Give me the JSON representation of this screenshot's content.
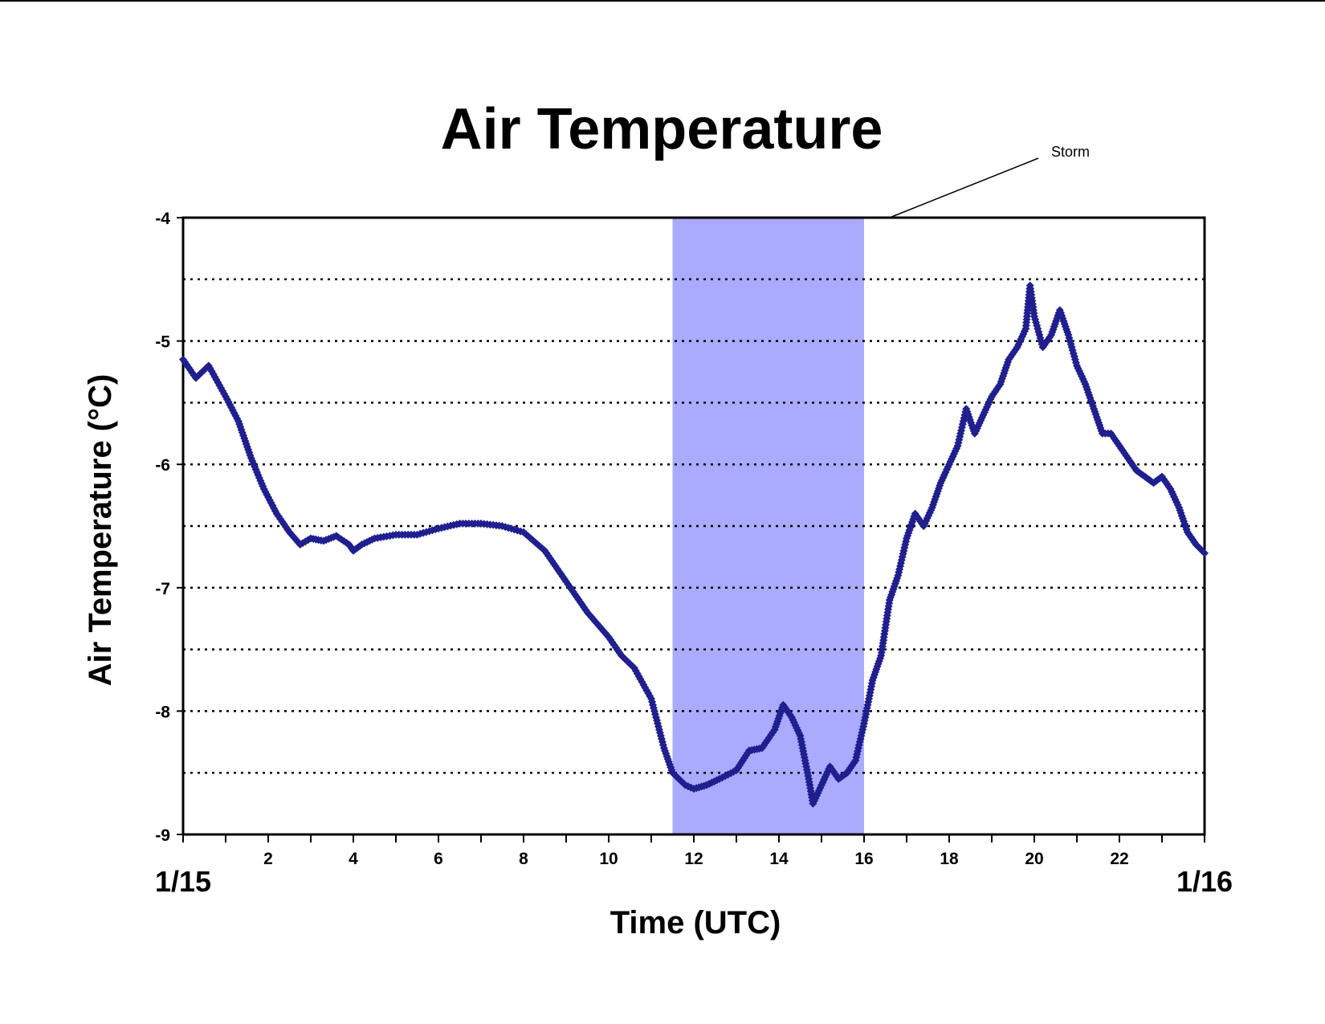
{
  "chart_data": {
    "type": "scatter",
    "title": "Air Temperature",
    "xlabel": "Time (UTC)",
    "ylabel": "Air Temperature (°C)",
    "xlim": [
      0,
      24
    ],
    "ylim": [
      -9,
      -4
    ],
    "x_ticks": [
      0,
      2,
      4,
      6,
      8,
      10,
      12,
      14,
      16,
      18,
      20,
      22,
      24
    ],
    "x_tick_labels": [
      "2",
      "4",
      "6",
      "8",
      "10",
      "12",
      "14",
      "16",
      "18",
      "20",
      "22"
    ],
    "y_ticks": [
      -9,
      -8,
      -7,
      -6,
      -5,
      -4
    ],
    "y_tick_labels": [
      "-9",
      "-8",
      "-7",
      "-6",
      "-5",
      "-4"
    ],
    "gridlines_y": [
      -8.5,
      -8,
      -7.5,
      -7,
      -6.5,
      -6,
      -5.5,
      -5,
      -4.5
    ],
    "grid": "horizontal dotted",
    "date_labels": {
      "start": "1/15",
      "end": "1/16"
    },
    "shaded_region": {
      "x_start": 11.5,
      "x_end": 16,
      "color": "#aaaaff"
    },
    "annotation": {
      "text": "Storm",
      "points_to_x": 16.6,
      "points_to_y": -4
    },
    "marker": {
      "shape": "diamond",
      "color": "#1f1f8f"
    },
    "series": [
      {
        "x": [
          0.0,
          0.3,
          0.6,
          1.0,
          1.3,
          1.6,
          1.9,
          2.2,
          2.5,
          2.75,
          3.0,
          3.3,
          3.6,
          3.9,
          4.0,
          4.2,
          4.5,
          5.0,
          5.5,
          6.0,
          6.5,
          7.0,
          7.5,
          8.0,
          8.5,
          9.0,
          9.5,
          10.0,
          10.3,
          10.6,
          11.0,
          11.3,
          11.5,
          11.8,
          12.0,
          12.3,
          12.6,
          13.0,
          13.3,
          13.6,
          13.9,
          14.1,
          14.3,
          14.5,
          14.7,
          14.8,
          15.0,
          15.2,
          15.4,
          15.6,
          15.8,
          16.0,
          16.2,
          16.4,
          16.6,
          16.8,
          17.0,
          17.2,
          17.4,
          17.6,
          17.8,
          18.0,
          18.2,
          18.4,
          18.6,
          18.8,
          19.0,
          19.2,
          19.4,
          19.6,
          19.8,
          19.9,
          20.0,
          20.2,
          20.4,
          20.6,
          20.8,
          21.0,
          21.2,
          21.4,
          21.6,
          21.8,
          22.0,
          22.2,
          22.4,
          22.6,
          22.8,
          23.0,
          23.2,
          23.4,
          23.6,
          23.8,
          24.0
        ],
        "y": [
          -5.15,
          -5.3,
          -5.2,
          -5.45,
          -5.65,
          -5.95,
          -6.2,
          -6.4,
          -6.55,
          -6.65,
          -6.6,
          -6.62,
          -6.58,
          -6.65,
          -6.7,
          -6.65,
          -6.6,
          -6.57,
          -6.57,
          -6.52,
          -6.48,
          -6.48,
          -6.5,
          -6.55,
          -6.7,
          -6.95,
          -7.2,
          -7.4,
          -7.55,
          -7.65,
          -7.9,
          -8.3,
          -8.5,
          -8.6,
          -8.63,
          -8.6,
          -8.55,
          -8.48,
          -8.32,
          -8.3,
          -8.15,
          -7.95,
          -8.05,
          -8.2,
          -8.55,
          -8.75,
          -8.6,
          -8.45,
          -8.55,
          -8.5,
          -8.4,
          -8.1,
          -7.75,
          -7.55,
          -7.1,
          -6.9,
          -6.6,
          -6.4,
          -6.5,
          -6.35,
          -6.15,
          -6.0,
          -5.85,
          -5.55,
          -5.75,
          -5.6,
          -5.45,
          -5.35,
          -5.15,
          -5.05,
          -4.9,
          -4.55,
          -4.8,
          -5.05,
          -4.95,
          -4.75,
          -4.95,
          -5.2,
          -5.35,
          -5.55,
          -5.75,
          -5.75,
          -5.85,
          -5.95,
          -6.05,
          -6.1,
          -6.15,
          -6.1,
          -6.2,
          -6.35,
          -6.55,
          -6.65,
          -6.72
        ]
      }
    ]
  }
}
